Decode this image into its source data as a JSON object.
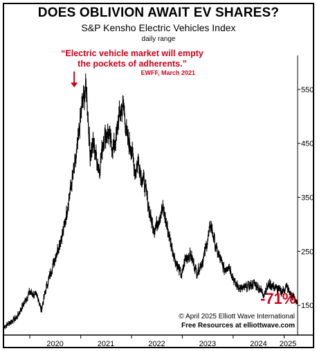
{
  "header": {
    "title": "DOES OBLIVION AWAIT EV SHARES?",
    "subtitle": "S&P Kensho Electric Vehicles Index",
    "note": "daily range"
  },
  "annotation": {
    "quote": "“Electric vehicle market will empty the pockets of adherents.”",
    "source": "EWFF, March 2021",
    "change": "-71%"
  },
  "footer": {
    "copyright": "© April 2025  Elliott Wave International",
    "resources": "Free Resources at elliottwave.com"
  },
  "colors": {
    "accent": "#d0021b",
    "line": "#000000"
  },
  "chart_data": {
    "type": "line",
    "title": "DOES OBLIVION AWAIT EV SHARES?",
    "subtitle": "S&P Kensho Electric Vehicles Index",
    "xlabel": "",
    "ylabel": "",
    "y_ticks": [
      150,
      250,
      350,
      450,
      550
    ],
    "x_ticks": [
      "2020",
      "2021",
      "2022",
      "2023",
      "2024",
      "2025"
    ],
    "ylim": [
      95,
      600
    ],
    "xlim": [
      "2019-07-01",
      "2025-04-08"
    ],
    "grid": false,
    "y_axis_side": "right",
    "series": [
      {
        "x": [
          "2019-07-01",
          "2019-10-01",
          "2020-01-01",
          "2020-03-01",
          "2020-03-23",
          "2020-05-01",
          "2020-07-01",
          "2020-09-01",
          "2020-10-15",
          "2020-12-01",
          "2021-01-10",
          "2021-02-10",
          "2021-03-01",
          "2021-03-10",
          "2021-04-01",
          "2021-05-15",
          "2021-06-15",
          "2021-07-15",
          "2021-08-20",
          "2021-09-15",
          "2021-10-01",
          "2021-11-05",
          "2021-12-01",
          "2022-01-01",
          "2022-01-28",
          "2022-02-20",
          "2022-03-10",
          "2022-04-01",
          "2022-05-20",
          "2022-06-15",
          "2022-08-15",
          "2022-09-10",
          "2022-10-15",
          "2022-11-15",
          "2022-12-28",
          "2023-01-20",
          "2023-03-01",
          "2023-04-15",
          "2023-06-01",
          "2023-07-25",
          "2023-09-01",
          "2023-10-31",
          "2023-12-01",
          "2024-01-15",
          "2024-03-01",
          "2024-04-15",
          "2024-06-01",
          "2024-07-15",
          "2024-08-05",
          "2024-09-15",
          "2024-10-15",
          "2024-11-15",
          "2024-12-15",
          "2025-01-20",
          "2025-02-15",
          "2025-03-10",
          "2025-04-08"
        ],
        "values": [
          110,
          128,
          175,
          165,
          140,
          185,
          238,
          290,
          358,
          425,
          520,
          555,
          470,
          430,
          450,
          400,
          460,
          470,
          440,
          460,
          500,
          520,
          460,
          440,
          395,
          420,
          390,
          380,
          310,
          290,
          330,
          300,
          260,
          230,
          205,
          235,
          245,
          210,
          235,
          300,
          255,
          215,
          225,
          190,
          180,
          185,
          190,
          180,
          170,
          190,
          185,
          180,
          175,
          185,
          170,
          165,
          155
        ]
      }
    ]
  }
}
